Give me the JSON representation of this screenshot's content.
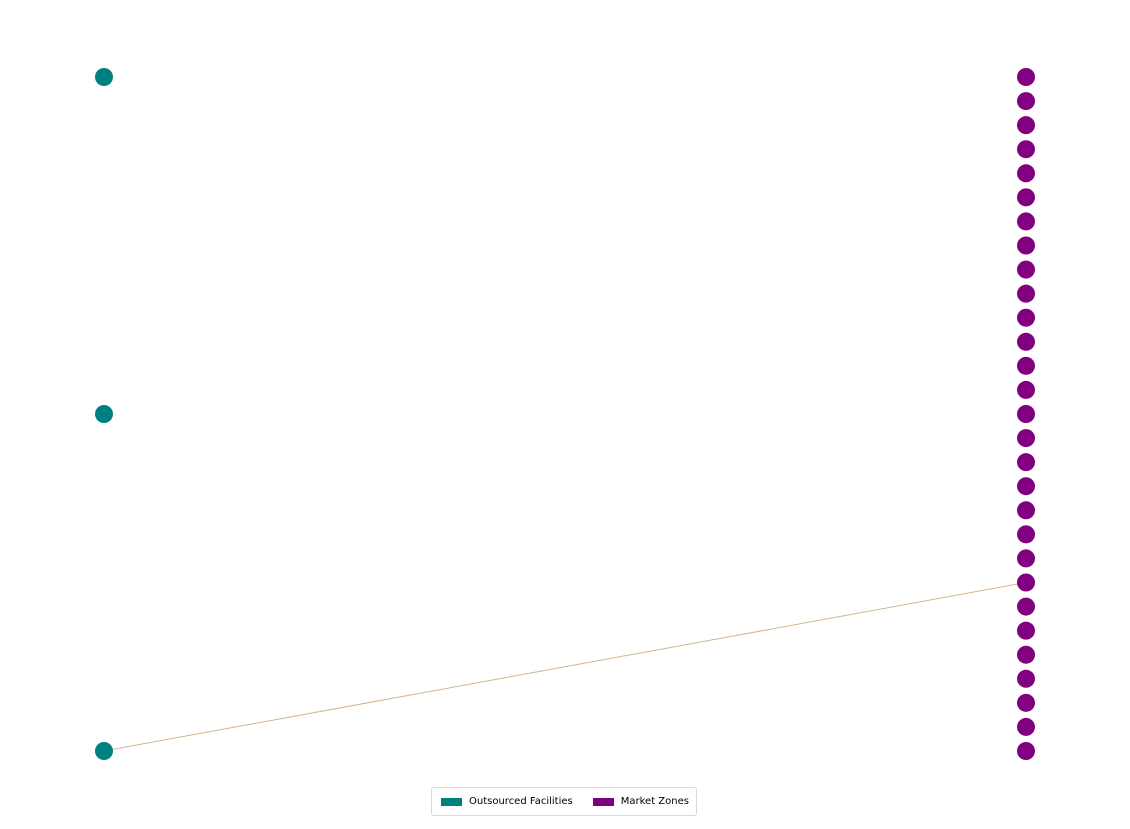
{
  "colors": {
    "outsourced_facility": "#008080",
    "market_zone": "#800080",
    "edge": "#d2b48c"
  },
  "legend": {
    "facilities_label": "Outsourced Facilities",
    "zones_label": "Market Zones"
  },
  "graph": {
    "facilities_count": 3,
    "zones_count": 29,
    "edges": [
      {
        "facility_index": 2,
        "zone_index": 21
      }
    ]
  }
}
